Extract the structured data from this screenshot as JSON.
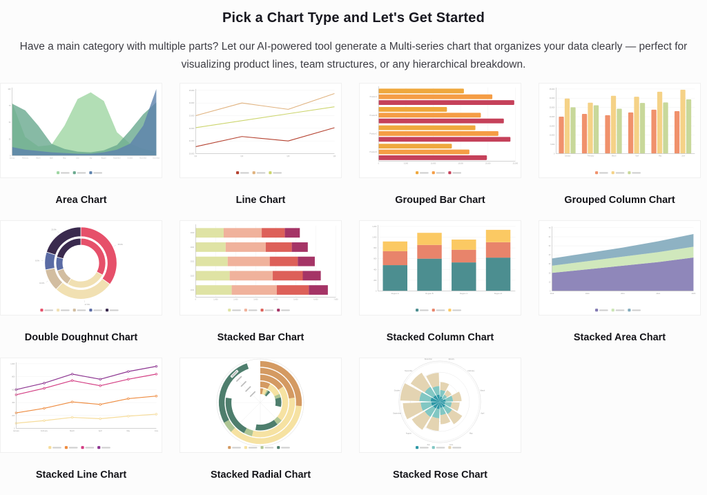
{
  "page": {
    "title": "Pick a Chart Type and Let's Get Started",
    "description": "Have a main category with multiple parts? Let our AI-powered tool generate a Multi-series chart that organizes your data clearly — perfect for visualizing product lines, team structures, or any hierarchical breakdown."
  },
  "charts": [
    {
      "id": "area",
      "label": "Area Chart",
      "type": "area",
      "x_labels": [
        "January",
        "February",
        "March",
        "April",
        "May",
        "June",
        "July",
        "August",
        "September",
        "October",
        "November",
        "December"
      ],
      "y_ticks": [
        "0",
        "25",
        "50",
        "75",
        "100"
      ],
      "ymax": 100,
      "series": [
        {
          "color": "#9fd6a2",
          "values": [
            80,
            28,
            14,
            16,
            45,
            85,
            95,
            82,
            35,
            18,
            10,
            6
          ]
        },
        {
          "color": "#69a98e",
          "values": [
            78,
            68,
            45,
            18,
            10,
            6,
            5,
            8,
            16,
            38,
            62,
            80
          ]
        },
        {
          "color": "#5d82ad",
          "values": [
            13,
            9,
            7,
            5,
            4,
            3,
            3,
            5,
            9,
            18,
            45,
            100
          ]
        }
      ]
    },
    {
      "id": "line",
      "label": "Line Chart",
      "type": "line",
      "x_labels": [
        "Q1",
        "Q2",
        "Q3",
        "Q4"
      ],
      "y_ticks": [
        "20,000",
        "21,000",
        "22,000",
        "23,000",
        "24,000",
        "25,000"
      ],
      "ymin": 20000,
      "ymax": 25000,
      "series": [
        {
          "color": "#e0b27e",
          "values": [
            23000,
            24000,
            23500,
            24750
          ]
        },
        {
          "color": "#ccd56e",
          "values": [
            22050,
            22600,
            23150,
            23700
          ]
        },
        {
          "color": "#b4402e",
          "values": [
            20550,
            21350,
            21000,
            22050
          ]
        }
      ],
      "legend_swatches": [
        "#b4402e",
        "#e0b27e",
        "#ccd56e"
      ]
    },
    {
      "id": "grouped-bar",
      "label": "Grouped Bar Chart",
      "type": "barsH",
      "categories": [
        "Product A",
        "Product B",
        "Product C",
        "Product D"
      ],
      "x_ticks": [
        "0",
        "5,000",
        "10,000",
        "15,000",
        "20,000",
        "25,000"
      ],
      "xmax": 25000,
      "series": [
        {
          "color": "#efa83d",
          "values": [
            15600,
            12500,
            17700,
            13400
          ]
        },
        {
          "color": "#f59d45",
          "values": [
            20800,
            18700,
            21900,
            16600
          ]
        },
        {
          "color": "#c5415a",
          "values": [
            24800,
            22900,
            24100,
            19800
          ]
        }
      ]
    },
    {
      "id": "grouped-column",
      "label": "Grouped Column Chart",
      "type": "colsGrouped",
      "categories": [
        "January",
        "February",
        "March",
        "April",
        "May",
        "June"
      ],
      "y_ticks": [
        "0",
        "5,000",
        "10,000",
        "15,000",
        "20,000",
        "25,000",
        "30,000",
        "35,000"
      ],
      "ymax": 35000,
      "series": [
        {
          "color": "#f0916c",
          "values": [
            20000,
            21500,
            20800,
            22300,
            23800,
            23000
          ]
        },
        {
          "color": "#f5d287",
          "values": [
            29800,
            27600,
            31300,
            30800,
            33500,
            34600
          ]
        },
        {
          "color": "#c8d89a",
          "values": [
            25100,
            26200,
            24300,
            27400,
            27700,
            29400
          ]
        }
      ]
    },
    {
      "id": "double-doughnut",
      "label": "Double Doughnut Chart",
      "type": "doubleDoughnut",
      "slice_colors": [
        "#e6506a",
        "#f1e0b2",
        "#d2bda0",
        "#5a6ba4",
        "#3a2a4e"
      ],
      "outer_values": [
        35,
        27,
        10,
        8,
        20
      ],
      "inner_values": [
        33,
        26,
        11,
        9,
        21
      ],
      "callouts": [
        "35.0%",
        "27.0%",
        "10.0%",
        "8.0%",
        "20.0%"
      ]
    },
    {
      "id": "stacked-bar",
      "label": "Stacked Bar Chart",
      "type": "stackedBarsH",
      "categories": [
        "2020",
        "2021",
        "2022",
        "2023",
        "2024"
      ],
      "x_ticks": [
        "0",
        "1,000",
        "2,000",
        "3,000",
        "4,000",
        "5,000",
        "6,000",
        "7,000"
      ],
      "xmax": 7000,
      "series": [
        {
          "color": "#dfe3a4",
          "values": [
            1400,
            1500,
            1600,
            1700,
            1800
          ]
        },
        {
          "color": "#f0b29c",
          "values": [
            1900,
            2000,
            2100,
            2150,
            2250
          ]
        },
        {
          "color": "#dd6059",
          "values": [
            1150,
            1300,
            1400,
            1500,
            1600
          ]
        },
        {
          "color": "#a53466",
          "values": [
            750,
            800,
            850,
            900,
            950
          ]
        }
      ]
    },
    {
      "id": "stacked-column",
      "label": "Stacked Column Chart",
      "type": "stackedCols",
      "categories": [
        "Region A",
        "Region B",
        "Region C",
        "Region D"
      ],
      "y_ticks": [
        "0",
        "200",
        "400",
        "600",
        "800",
        "1,000",
        "1,200"
      ],
      "ymax": 1200,
      "series": [
        {
          "color": "#4c8e90",
          "values": [
            480,
            600,
            530,
            620
          ]
        },
        {
          "color": "#e8846b",
          "values": [
            260,
            255,
            235,
            285
          ]
        },
        {
          "color": "#fbc963",
          "values": [
            180,
            225,
            190,
            230
          ]
        }
      ]
    },
    {
      "id": "stacked-area",
      "label": "Stacked Area Chart",
      "type": "stackedArea",
      "x_labels": [
        "2019",
        "2020",
        "2021",
        "2022",
        "2023"
      ],
      "y_ticks": [
        "0",
        "10",
        "20",
        "30",
        "40",
        "50",
        "60",
        "70"
      ],
      "ymax": 70,
      "series": [
        {
          "color": "#837ab3",
          "values": [
            20,
            24,
            28,
            32,
            37
          ]
        },
        {
          "color": "#cbe5b5",
          "values": [
            8,
            9,
            10,
            11,
            12
          ]
        },
        {
          "color": "#82aabc",
          "values": [
            8,
            9,
            10,
            12,
            14
          ]
        }
      ]
    },
    {
      "id": "stacked-line",
      "label": "Stacked Line Chart",
      "type": "lineMarkers",
      "x_labels": [
        "January",
        "February",
        "March",
        "April",
        "May",
        "June"
      ],
      "y_ticks": [
        "0",
        "200",
        "400",
        "600",
        "800",
        "1,000"
      ],
      "ymax": 1000,
      "series": [
        {
          "color": "#f6dc9a",
          "values": [
            80,
            120,
            170,
            150,
            190,
            220
          ]
        },
        {
          "color": "#ee8b3f",
          "values": [
            240,
            310,
            410,
            370,
            460,
            500
          ]
        },
        {
          "color": "#d33c82",
          "values": [
            520,
            620,
            740,
            660,
            760,
            840
          ]
        },
        {
          "color": "#8c3490",
          "values": [
            600,
            700,
            840,
            760,
            880,
            960
          ]
        }
      ]
    },
    {
      "id": "stacked-radial",
      "label": "Stacked Radial Chart",
      "type": "radial",
      "colors": [
        "#d49a62",
        "#f6e2a2",
        "#aec594",
        "#4e7e6d"
      ],
      "thickness": 8.5,
      "rings": [
        {
          "r": 61,
          "segments": [
            95,
            130,
            16,
            100
          ]
        },
        {
          "r": 51,
          "segments": [
            82,
            112,
            14,
            70
          ]
        },
        {
          "r": 41,
          "segments": [
            55,
            75,
            12,
            48
          ]
        },
        {
          "r": 31,
          "segments": [
            28,
            38,
            10,
            26
          ]
        },
        {
          "r": 21,
          "segments": [
            12,
            16,
            6,
            10
          ]
        }
      ]
    },
    {
      "id": "stacked-rose",
      "label": "Stacked Rose Chart",
      "type": "rose",
      "x_labels": [
        "January",
        "February",
        "March",
        "April",
        "May",
        "June",
        "July",
        "August",
        "September",
        "October",
        "November",
        "December"
      ],
      "series": [
        {
          "color": "#2e98a6",
          "values": [
            8,
            6,
            9,
            8,
            10,
            9,
            11,
            12,
            13,
            14,
            12,
            11
          ]
        },
        {
          "color": "#82c7c3",
          "values": [
            10,
            7,
            11,
            10,
            12,
            11,
            14,
            15,
            16,
            17,
            15,
            13
          ]
        },
        {
          "color": "#e4d4b2",
          "values": [
            12,
            8,
            13,
            12,
            18,
            14,
            19,
            23,
            27,
            29,
            25,
            20
          ]
        }
      ]
    }
  ]
}
